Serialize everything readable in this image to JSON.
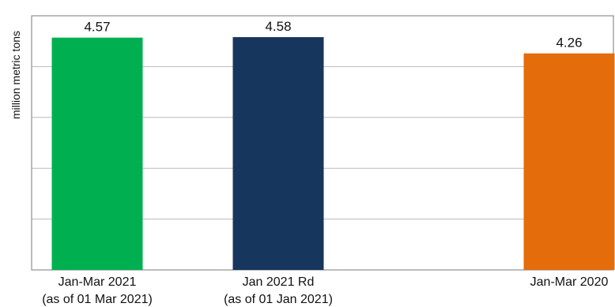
{
  "chart_data": {
    "type": "bar",
    "title": "",
    "ylabel": "million metric tons",
    "xlabel": "",
    "ylim": [
      0,
      5
    ],
    "grid": true,
    "categories": [
      [
        "Jan-Mar 2021",
        "(as of 01 Mar 2021)"
      ],
      [
        "Jan 2021 Rd",
        "(as of 01 Jan 2021)"
      ],
      [
        "Jan-Mar 2020"
      ]
    ],
    "values": [
      4.57,
      4.58,
      4.26
    ],
    "value_labels": [
      "4.57",
      "4.58",
      "4.26"
    ],
    "colors": [
      "#00b050",
      "#17365d",
      "#e46c0a"
    ]
  }
}
